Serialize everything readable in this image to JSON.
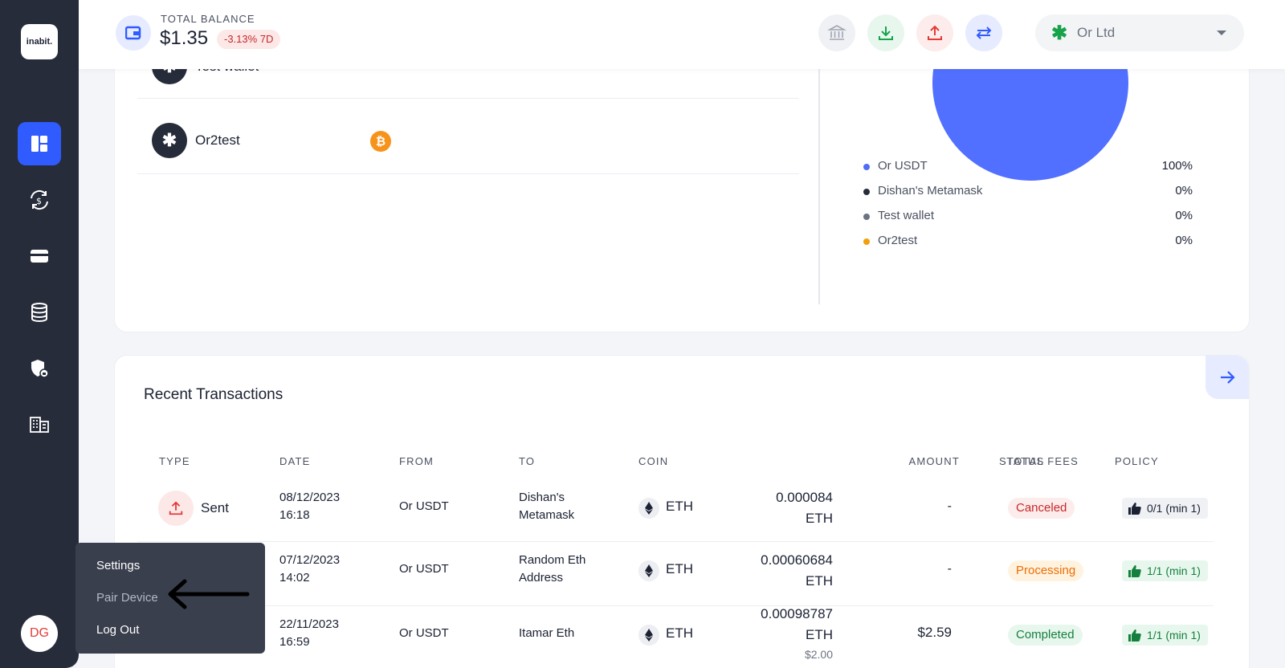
{
  "app": {
    "logo_text": "inabit."
  },
  "sidebar": {
    "items": [
      {
        "icon": "dashboard-icon",
        "active": true
      },
      {
        "icon": "exchange-icon",
        "active": false
      },
      {
        "icon": "wallet-icon",
        "active": false
      },
      {
        "icon": "database-icon",
        "active": false
      },
      {
        "icon": "shield-icon",
        "active": false
      },
      {
        "icon": "building-icon",
        "active": false
      }
    ],
    "avatar_initials": "DG"
  },
  "header": {
    "balance_label": "TOTAL BALANCE",
    "balance_value": "$1.35",
    "balance_change": "-3.13% 7D",
    "actions": [
      "bank-icon",
      "deposit-icon",
      "withdraw-icon",
      "swap-icon"
    ],
    "org_name": "Or Ltd"
  },
  "wallets": [
    {
      "name": "Test wallet",
      "extra": "-"
    },
    {
      "name": "Or2test",
      "extra": ""
    }
  ],
  "allocation": {
    "legend": [
      {
        "name": "Or USDT",
        "value": "100%",
        "color": "#4f6cf7"
      },
      {
        "name": "Dishan's Metamask",
        "value": "0%",
        "color": "#272c3a"
      },
      {
        "name": "Test wallet",
        "value": "0%",
        "color": "#6b7280"
      },
      {
        "name": "Or2test",
        "value": "0%",
        "color": "#f59e0b"
      }
    ]
  },
  "transactions": {
    "title": "Recent Transactions",
    "columns": [
      "TYPE",
      "DATE",
      "FROM",
      "TO",
      "COIN",
      "AMOUNT",
      "TOTAL FEES",
      "STATUS",
      "POLICY"
    ],
    "rows": [
      {
        "type": "Sent",
        "date": "08/12/2023",
        "time": "16:18",
        "from": "Or USDT",
        "to_line1": "Dishan's",
        "to_line2": "Metamask",
        "coin": "ETH",
        "amount": "0.000084",
        "amount_unit": "ETH",
        "amount_usd": "",
        "fees": "-",
        "status": "Canceled",
        "policy": "0/1 (min 1)"
      },
      {
        "type": "",
        "date": "07/12/2023",
        "time": "14:02",
        "from": "Or USDT",
        "to_line1": "Random Eth",
        "to_line2": "Address",
        "coin": "ETH",
        "amount": "0.00060684",
        "amount_unit": "ETH",
        "amount_usd": "",
        "fees": "-",
        "status": "Processing",
        "policy": "1/1 (min 1)"
      },
      {
        "type": "",
        "date": "22/11/2023",
        "time": "16:59",
        "from": "Or USDT",
        "to_line1": "Itamar Eth",
        "to_line2": "",
        "coin": "ETH",
        "amount": "0.00098787",
        "amount_unit": "ETH",
        "amount_usd": "$2.00",
        "fees": "$2.59",
        "status": "Completed",
        "policy": "1/1 (min 1)"
      }
    ]
  },
  "user_menu": {
    "items": [
      "Settings",
      "Pair Device",
      "Log Out"
    ]
  }
}
